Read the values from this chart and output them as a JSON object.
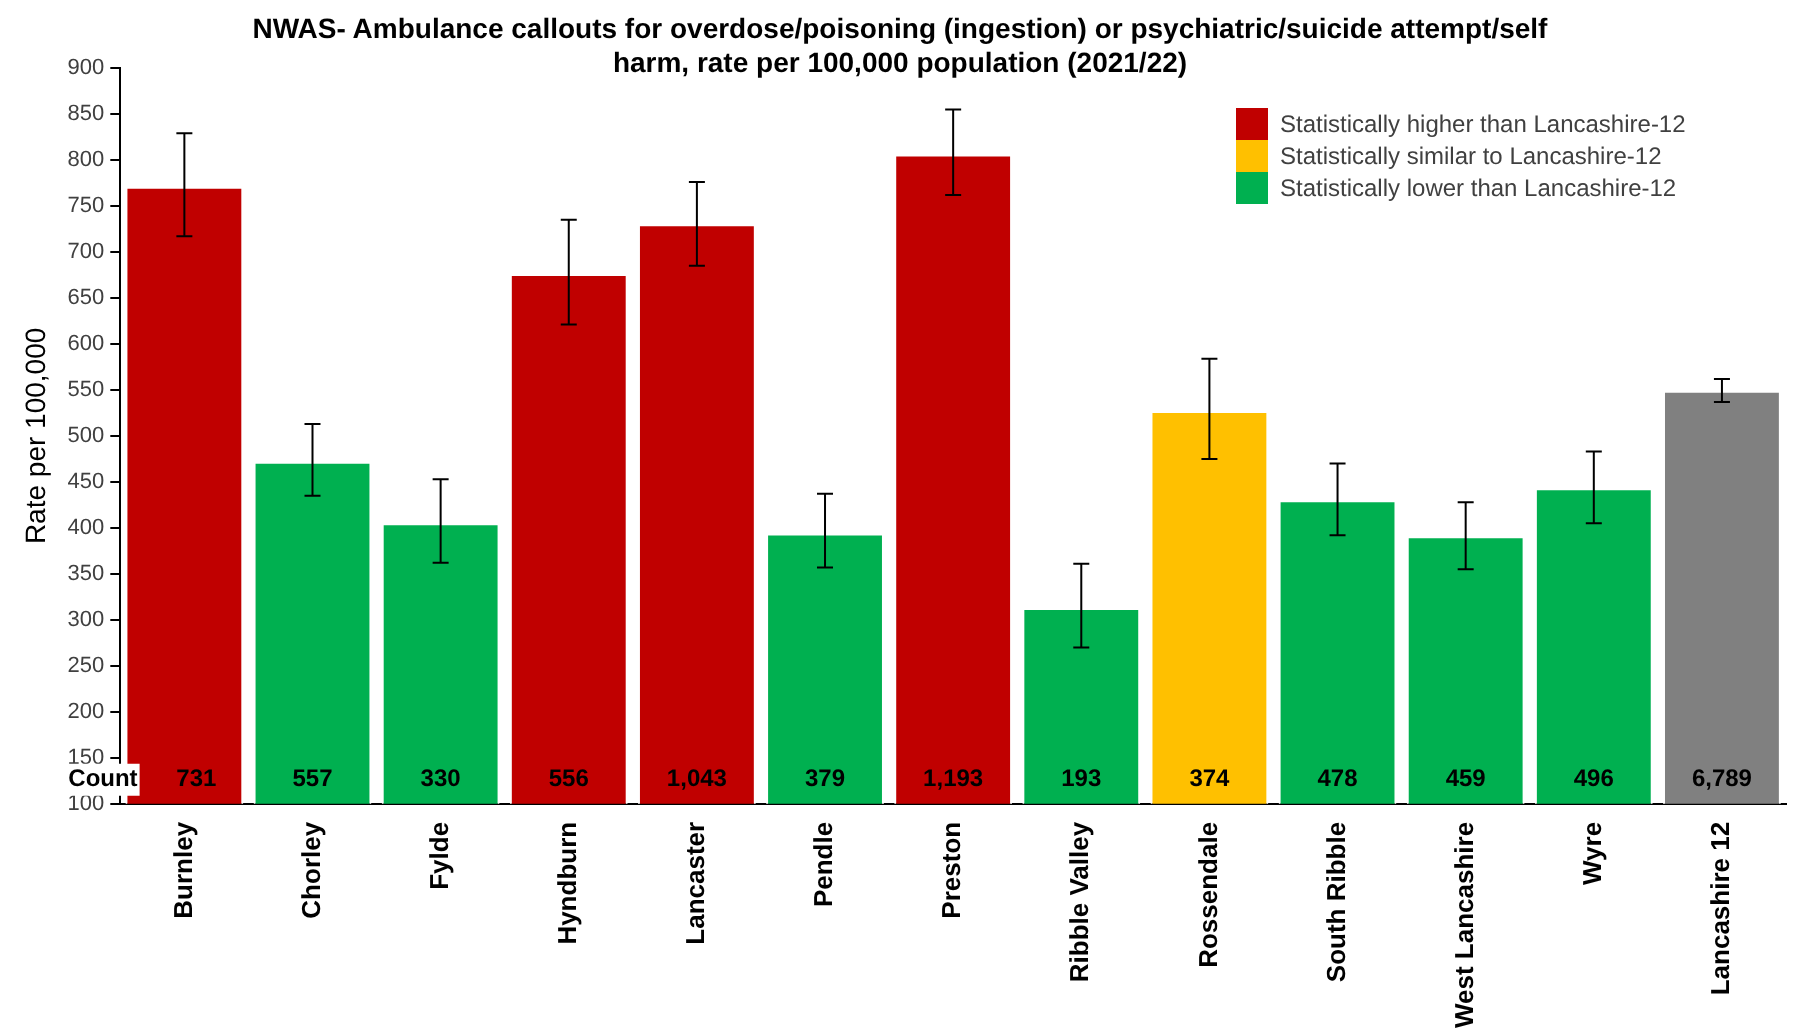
{
  "chart_data": {
    "type": "bar",
    "title": "NWAS- Ambulance callouts for overdose/poisoning (ingestion) or psychiatric/suicide attempt/self harm, rate per 100,000 population (2021/22)",
    "ylabel": "Rate per 100,000",
    "categories": [
      "Burnley",
      "Chorley",
      "Fylde",
      "Hyndburn",
      "Lancaster",
      "Pendle",
      "Preston",
      "Ribble Valley",
      "Rossendale",
      "South Ribble",
      "West Lancashire",
      "Wyre",
      "Lancashire 12"
    ],
    "stacked": true,
    "series": [
      {
        "name": "Statistically higher than Lancashire-12",
        "color": "#c00000",
        "values": [
          771,
          null,
          null,
          676,
          730,
          null,
          806,
          null,
          null,
          null,
          null,
          null,
          null
        ],
        "errors": [
          [
            717,
            829
          ],
          null,
          null,
          [
            621,
            735
          ],
          [
            685,
            776
          ],
          null,
          [
            762,
            855
          ],
          null,
          null,
          null,
          null,
          null,
          null
        ]
      },
      {
        "name": "Statistically similar to Lancashire-12",
        "color": "#ffc000",
        "values": [
          null,
          null,
          null,
          null,
          null,
          null,
          null,
          null,
          527,
          null,
          null,
          null,
          null
        ],
        "errors": [
          null,
          null,
          null,
          null,
          null,
          null,
          null,
          null,
          [
            475,
            584
          ],
          null,
          null,
          null,
          null
        ]
      },
      {
        "name": "Statistically lower than Lancashire-12",
        "color": "#00b050",
        "values": [
          null,
          472,
          405,
          null,
          null,
          394,
          null,
          313,
          null,
          430,
          391,
          443,
          null
        ],
        "errors": [
          null,
          [
            435,
            513
          ],
          [
            362,
            453
          ],
          null,
          null,
          [
            357,
            437
          ],
          null,
          [
            270,
            361
          ],
          null,
          [
            392,
            470
          ],
          [
            355,
            428
          ],
          [
            405,
            483
          ],
          null
        ]
      },
      {
        "color": "#808080",
        "values": [
          null,
          null,
          null,
          null,
          null,
          null,
          null,
          null,
          null,
          null,
          null,
          null,
          549
        ],
        "errors": [
          null,
          null,
          null,
          null,
          null,
          null,
          null,
          null,
          null,
          null,
          null,
          null,
          [
            537,
            562
          ]
        ]
      }
    ],
    "ylim": [
      100,
      900
    ],
    "yticks": [
      100,
      150,
      200,
      250,
      300,
      350,
      400,
      450,
      500,
      550,
      600,
      650,
      700,
      750,
      800,
      850,
      900
    ],
    "grid": false,
    "legend": "top right",
    "annotations": [
      "Count",
      "731",
      "557",
      "330",
      "556",
      "1,043",
      "379",
      "1,193",
      "193",
      "374",
      "478",
      "459",
      "496",
      "6,789"
    ]
  }
}
